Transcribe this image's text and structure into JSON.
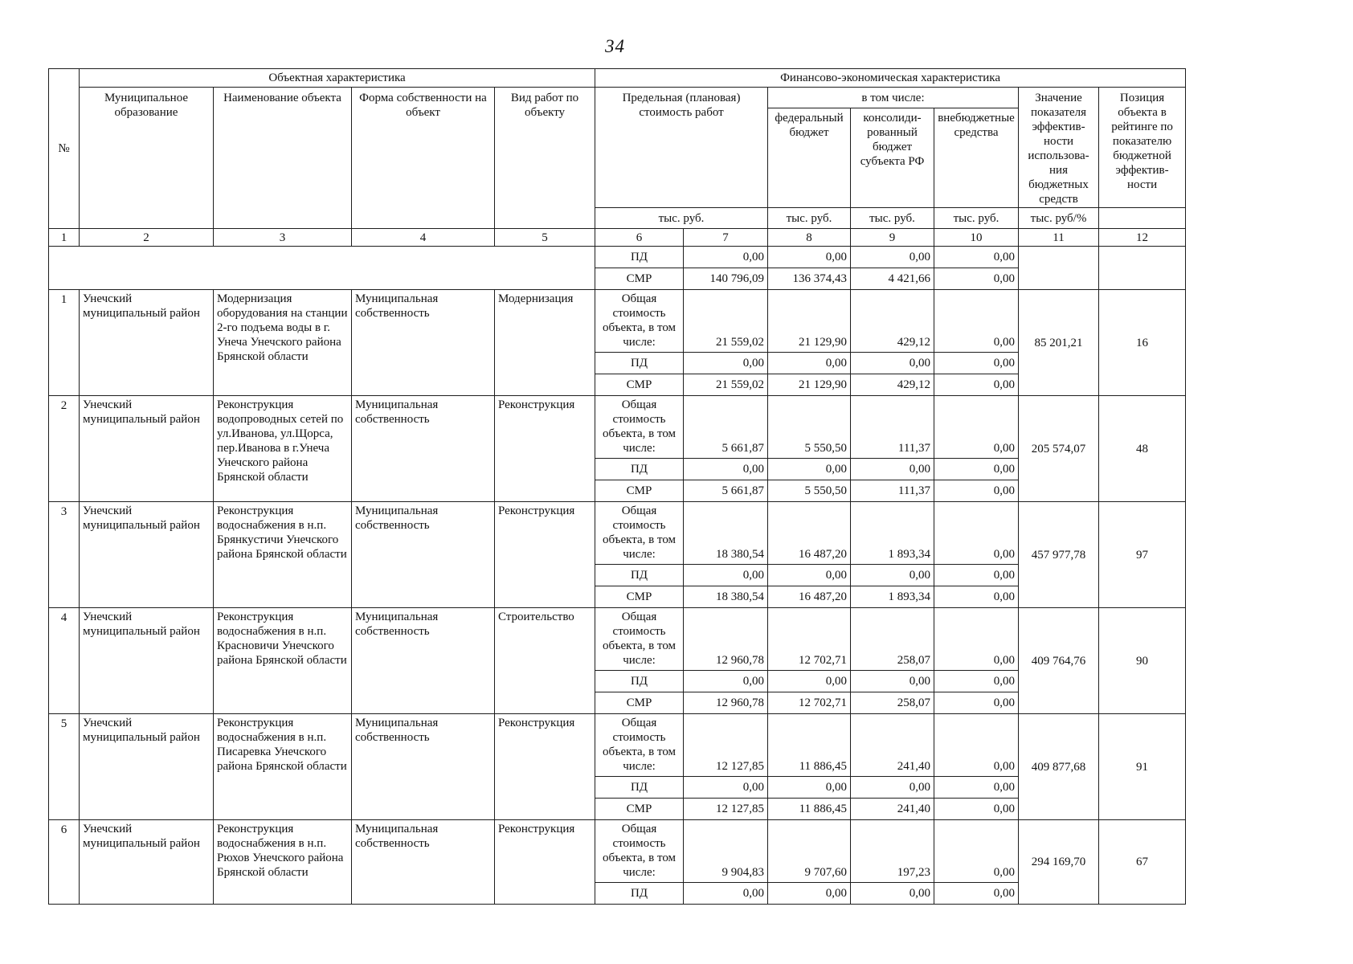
{
  "page": {
    "number": "34"
  },
  "table": {
    "group_headers": {
      "no": "№",
      "object": "Объектная характеристика",
      "finance": "Финансово-экономическая характеристика"
    },
    "headers": {
      "municipality": "Муниципальное образование",
      "object_name": "Наименование объекта",
      "ownership": "Форма собственности на объект",
      "work_type": "Вид работ по объекту",
      "planned_cost": "Предельная (плановая) стоимость работ",
      "including": "в том числе:",
      "federal_budget": "федеральный бюджет",
      "consolidated_budget": "консолиди-рованный бюджет субъекта РФ",
      "extrabudgetary": "внебюджетные средства",
      "efficiency": "Значение показателя эффектив-ности использова-ния бюджетных средств",
      "rating": "Позиция объекта в рейтинге по показателю бюджетной эффектив-ности"
    },
    "units": {
      "cost": "тыс. руб.",
      "federal": "тыс. руб.",
      "consolidated": "тыс. руб.",
      "extrabudgetary": "тыс. руб.",
      "efficiency": "тыс. руб/%"
    },
    "column_numbers": [
      "1",
      "2",
      "3",
      "4",
      "5",
      "6",
      "7",
      "8",
      "9",
      "10",
      "11",
      "12"
    ],
    "row_labels": {
      "total": "Общая стоимость объекта, в том числе:",
      "pd": "ПД",
      "smr": "СМР"
    },
    "carryover": {
      "pd": [
        "0,00",
        "0,00",
        "0,00",
        "0,00"
      ],
      "smr": [
        "140 796,09",
        "136 374,43",
        "4 421,66",
        "0,00"
      ]
    },
    "objects": [
      {
        "no": "1",
        "municipality": "Унечский муниципальный район",
        "object_name": "Модернизация оборудования на станции 2-го подъема воды в г. Унеча Унечского района Брянской области",
        "ownership": "Муниципальная собственность",
        "work_type": "Модернизация",
        "total": [
          "21 559,02",
          "21 129,90",
          "429,12",
          "0,00"
        ],
        "pd": [
          "0,00",
          "0,00",
          "0,00",
          "0,00"
        ],
        "smr": [
          "21 559,02",
          "21 129,90",
          "429,12",
          "0,00"
        ],
        "efficiency": "85 201,21",
        "rating": "16"
      },
      {
        "no": "2",
        "municipality": "Унечский муниципальный район",
        "object_name": "Реконструкция водопроводных сетей по ул.Иванова, ул.Щорса, пер.Иванова в г.Унеча Унечского района Брянской области",
        "ownership": "Муниципальная собственность",
        "work_type": "Реконструкция",
        "total": [
          "5 661,87",
          "5 550,50",
          "111,37",
          "0,00"
        ],
        "pd": [
          "0,00",
          "0,00",
          "0,00",
          "0,00"
        ],
        "smr": [
          "5 661,87",
          "5 550,50",
          "111,37",
          "0,00"
        ],
        "efficiency": "205 574,07",
        "rating": "48"
      },
      {
        "no": "3",
        "municipality": "Унечский муниципальный район",
        "object_name": "Реконструкция водоснабжения в н.п. Брянкустичи Унечского района Брянской области",
        "ownership": "Муниципальная собственность",
        "work_type": "Реконструкция",
        "total": [
          "18 380,54",
          "16 487,20",
          "1 893,34",
          "0,00"
        ],
        "pd": [
          "0,00",
          "0,00",
          "0,00",
          "0,00"
        ],
        "smr": [
          "18 380,54",
          "16 487,20",
          "1 893,34",
          "0,00"
        ],
        "efficiency": "457 977,78",
        "rating": "97"
      },
      {
        "no": "4",
        "municipality": "Унечский муниципальный район",
        "object_name": "Реконструкция водоснабжения в н.п. Красновичи Унечского района Брянской области",
        "ownership": "Муниципальная собственность",
        "work_type": "Строительство",
        "total": [
          "12 960,78",
          "12 702,71",
          "258,07",
          "0,00"
        ],
        "pd": [
          "0,00",
          "0,00",
          "0,00",
          "0,00"
        ],
        "smr": [
          "12 960,78",
          "12 702,71",
          "258,07",
          "0,00"
        ],
        "efficiency": "409 764,76",
        "rating": "90"
      },
      {
        "no": "5",
        "municipality": "Унечский муниципальный район",
        "object_name": "Реконструкция водоснабжения в н.п. Писаревка Унечского района Брянской области",
        "ownership": "Муниципальная собственность",
        "work_type": "Реконструкция",
        "total": [
          "12 127,85",
          "11 886,45",
          "241,40",
          "0,00"
        ],
        "pd": [
          "0,00",
          "0,00",
          "0,00",
          "0,00"
        ],
        "smr": [
          "12 127,85",
          "11 886,45",
          "241,40",
          "0,00"
        ],
        "efficiency": "409 877,68",
        "rating": "91"
      },
      {
        "no": "6",
        "municipality": "Унечский муниципальный район",
        "object_name": "Реконструкция водоснабжения в н.п. Рюхов Унечского района Брянской области",
        "ownership": "Муниципальная собственность",
        "work_type": "Реконструкция",
        "total": [
          "9 904,83",
          "9 707,60",
          "197,23",
          "0,00"
        ],
        "pd": [
          "0,00",
          "0,00",
          "0,00",
          "0,00"
        ],
        "efficiency": "294 169,70",
        "rating": "67"
      }
    ]
  }
}
